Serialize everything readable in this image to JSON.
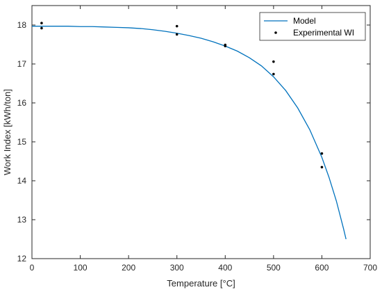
{
  "chart_data": {
    "type": "line",
    "title": "",
    "xlabel": "Temperature [°C]",
    "ylabel": "Work Index [kWh/ton]",
    "xlim": [
      0,
      700
    ],
    "ylim": [
      12,
      18.5
    ],
    "x_ticks": [
      0,
      100,
      200,
      300,
      400,
      500,
      600,
      700
    ],
    "y_ticks": [
      12,
      13,
      14,
      15,
      16,
      17,
      18
    ],
    "grid": false,
    "legend_position": "top-right",
    "series": [
      {
        "name": "Model",
        "kind": "line",
        "color": "#0072BD",
        "x": [
          0,
          25,
          50,
          75,
          100,
          125,
          150,
          175,
          200,
          225,
          250,
          275,
          300,
          325,
          350,
          375,
          400,
          425,
          450,
          475,
          500,
          525,
          550,
          575,
          600,
          615,
          630,
          645,
          650
        ],
        "y": [
          17.97,
          17.97,
          17.97,
          17.97,
          17.96,
          17.96,
          17.95,
          17.94,
          17.93,
          17.91,
          17.88,
          17.84,
          17.79,
          17.73,
          17.66,
          17.57,
          17.46,
          17.33,
          17.16,
          16.95,
          16.67,
          16.32,
          15.87,
          15.31,
          14.6,
          14.08,
          13.48,
          12.76,
          12.5
        ]
      },
      {
        "name": "Experimental WI",
        "kind": "scatter",
        "color": "#000000",
        "x": [
          20,
          20,
          300,
          300,
          400,
          400,
          500,
          500,
          600,
          600
        ],
        "y": [
          18.05,
          17.92,
          17.97,
          17.76,
          17.49,
          17.46,
          17.06,
          16.74,
          14.7,
          14.35
        ]
      }
    ]
  }
}
